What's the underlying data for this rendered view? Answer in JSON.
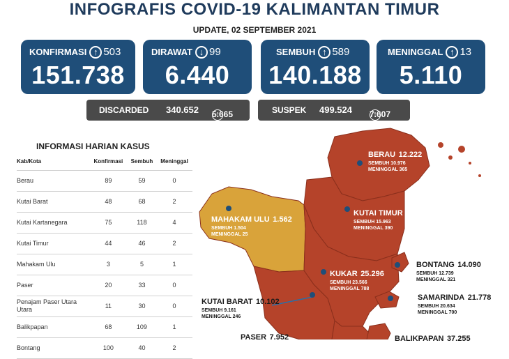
{
  "header": {
    "title": "INFOGRAFIS COVID-19 KALIMANTAN TIMUR",
    "update": "UPDATE, 02 SEPTEMBER 2021"
  },
  "stats": [
    {
      "label": "KONFIRMASI",
      "delta": "503",
      "direction": "up",
      "value": "151.738"
    },
    {
      "label": "DIRAWAT",
      "delta": "99",
      "direction": "down",
      "value": "6.440"
    },
    {
      "label": "SEMBUH",
      "delta": "589",
      "direction": "up",
      "value": "140.188"
    },
    {
      "label": "MENINGGAL",
      "delta": "13",
      "direction": "up",
      "value": "5.110"
    }
  ],
  "secondary": {
    "discarded_label": "DISCARDED",
    "discarded_value": "340.652",
    "discarded_delta": "5.665",
    "suspek_label": "SUSPEK",
    "suspek_value": "499.524",
    "suspek_delta": "7.607"
  },
  "table": {
    "title": "INFORMASI HARIAN KASUS",
    "headers": [
      "Kab/Kota",
      "Konfirmasi",
      "Sembuh",
      "Meninggal"
    ],
    "rows": [
      [
        "Berau",
        "89",
        "59",
        "0"
      ],
      [
        "Kutai Barat",
        "48",
        "68",
        "2"
      ],
      [
        "Kutai Kartanegara",
        "75",
        "118",
        "4"
      ],
      [
        "Kutai Timur",
        "44",
        "46",
        "2"
      ],
      [
        "Mahakam Ulu",
        "3",
        "5",
        "1"
      ],
      [
        "Paser",
        "20",
        "33",
        "0"
      ],
      [
        "Penajam Paser Utara Utara",
        "11",
        "30",
        "0"
      ],
      [
        "Balikpapan",
        "68",
        "109",
        "1"
      ],
      [
        "Bontang",
        "100",
        "40",
        "2"
      ]
    ]
  },
  "map": {
    "colors": {
      "red": "#b5432a",
      "orange": "#d9a33a",
      "stat_blue": "#1f4e79",
      "pill_gray": "#4a4a4a"
    },
    "regions": {
      "berau": {
        "name": "BERAU",
        "total": "12.222",
        "sembuh": "SEMBUH 10.976",
        "meninggal": "MENINGGAL 365"
      },
      "kutai_timur": {
        "name": "KUTAI TIMUR",
        "total": "17.244",
        "sembuh": "SEMBUH 15.963",
        "meninggal": "MENINGGAL 390"
      },
      "mahakam_ulu": {
        "name": "MAHAKAM ULU",
        "total": "1.562",
        "sembuh": "SEMBUH 1.504",
        "meninggal": "MENINGGAL 25"
      },
      "bontang": {
        "name": "BONTANG",
        "total": "14.090",
        "sembuh": "SEMBUH 12.739",
        "meninggal": "MENINGGAL 321"
      },
      "kukar": {
        "name": "KUKAR",
        "total": "25.296",
        "sembuh": "SEMBUH 23.566",
        "meninggal": "MENINGGAL 788"
      },
      "samarinda": {
        "name": "SAMARINDA",
        "total": "21.778",
        "sembuh": "SEMBUH 20.634",
        "meninggal": "MENINGGAL 700"
      },
      "kutai_barat": {
        "name": "KUTAI BARAT",
        "total": "10.102",
        "sembuh": "SEMBUH 9.161",
        "meninggal": "MENINGGAL 246"
      },
      "paser": {
        "name": "PASER",
        "total": "7.952"
      },
      "balikpapan": {
        "name": "BALIKPAPAN",
        "total": "37.255"
      }
    }
  }
}
